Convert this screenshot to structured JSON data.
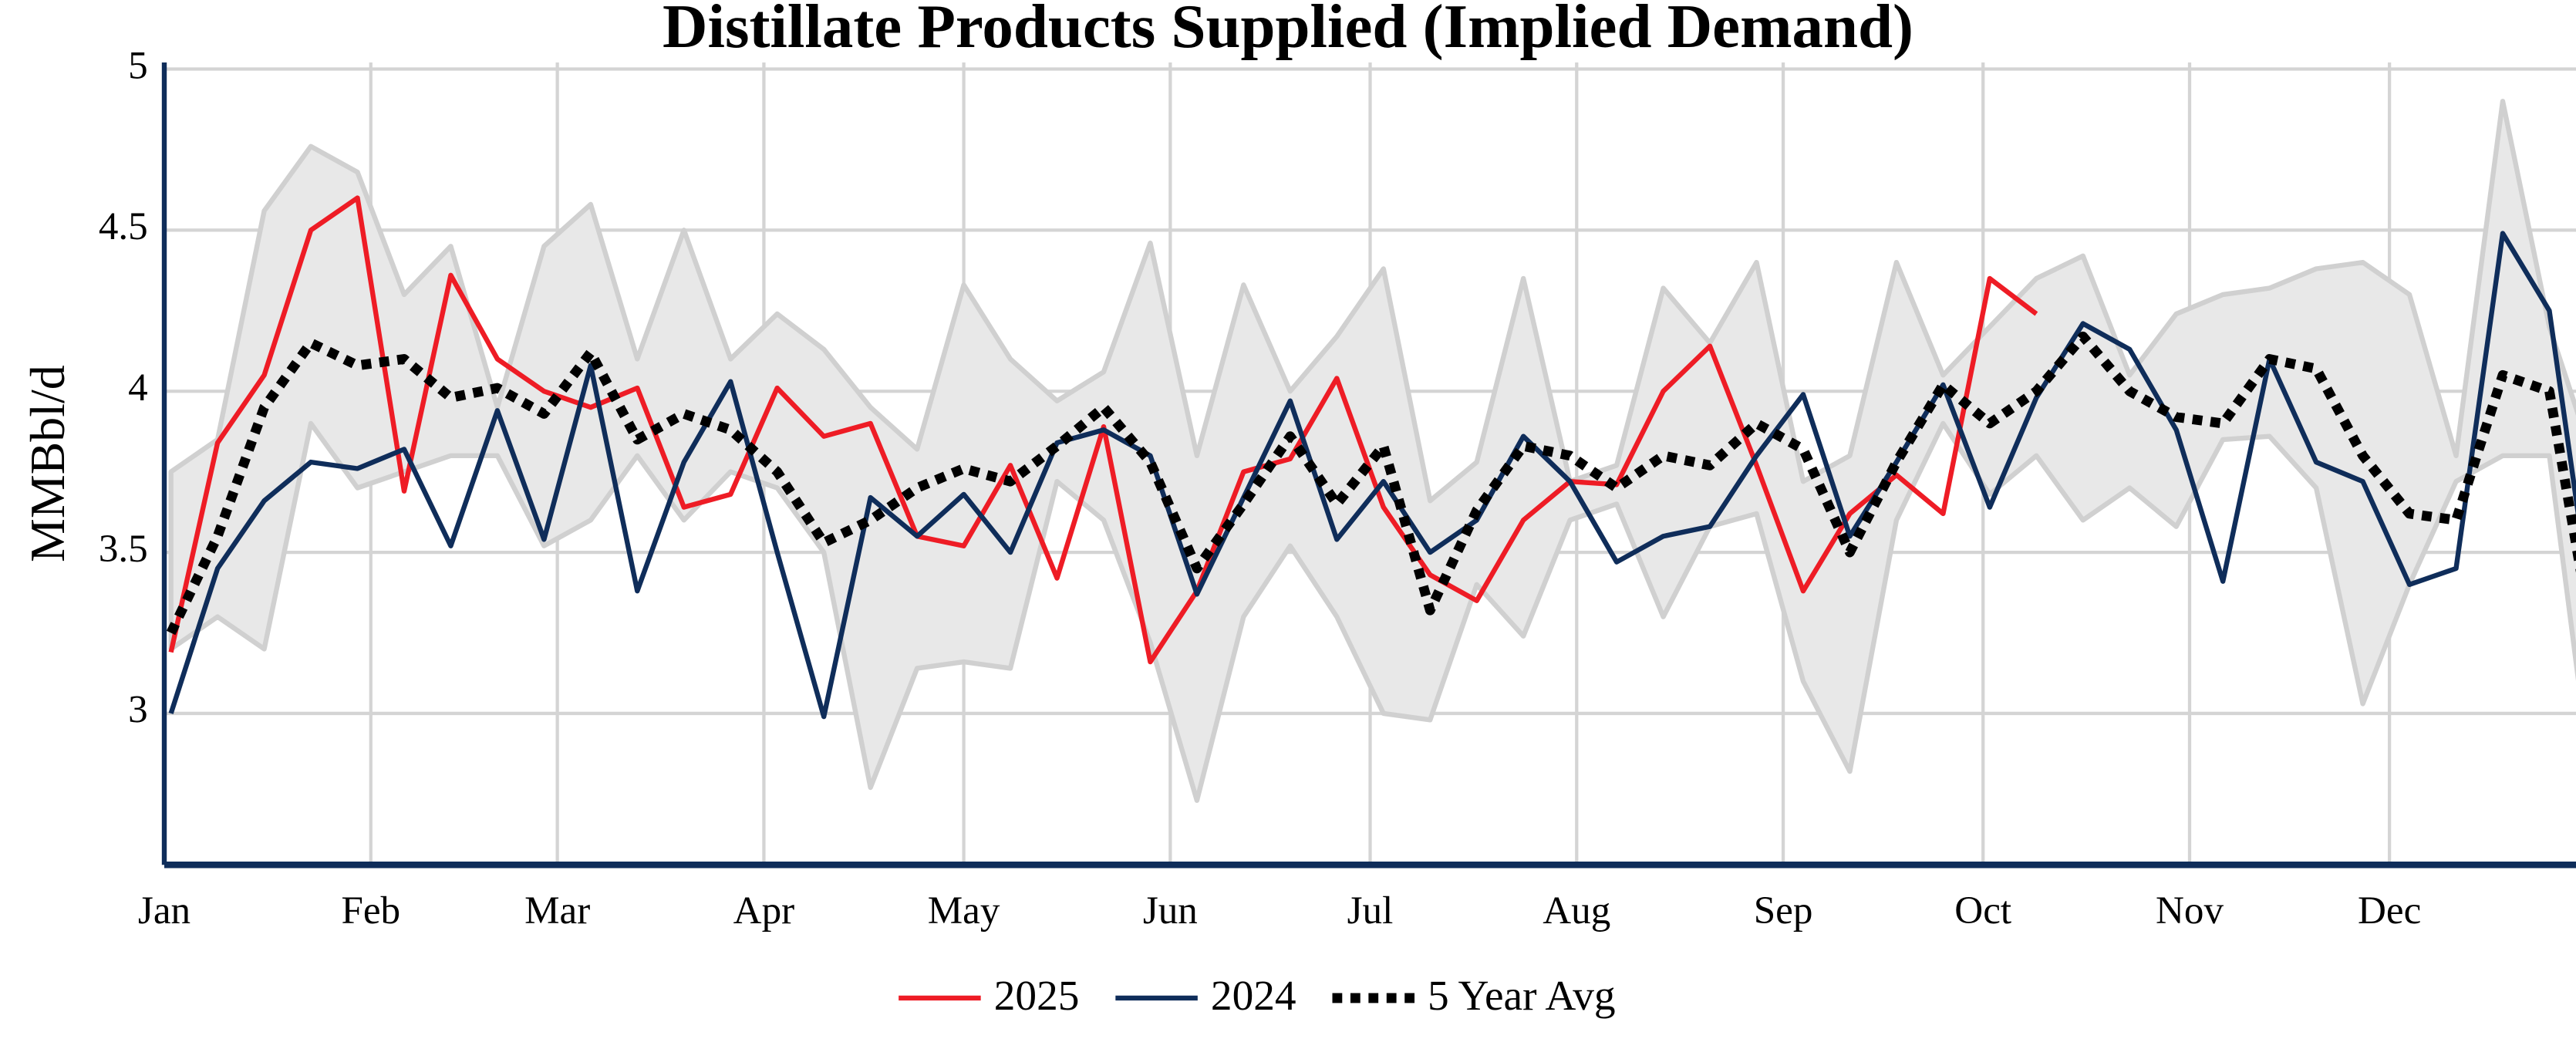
{
  "chart_data": {
    "type": "line",
    "title": "Distillate Products Supplied (Implied Demand)",
    "y_label": "MMBbl/d",
    "x": [
      1,
      8,
      15,
      22,
      29,
      36,
      43,
      50,
      57,
      64,
      71,
      78,
      85,
      92,
      99,
      106,
      113,
      120,
      127,
      134,
      141,
      148,
      155,
      162,
      169,
      176,
      183,
      190,
      197,
      204,
      211,
      218,
      225,
      232,
      239,
      246,
      253,
      260,
      267,
      274,
      281,
      288,
      295,
      302,
      309,
      316,
      323,
      330,
      337,
      344,
      351,
      358,
      365
    ],
    "xlim": [
      0,
      362
    ],
    "xticks": [
      {
        "value": 0,
        "label": "Jan"
      },
      {
        "value": 31,
        "label": "Feb"
      },
      {
        "value": 59,
        "label": "Mar"
      },
      {
        "value": 90,
        "label": "Apr"
      },
      {
        "value": 120,
        "label": "May"
      },
      {
        "value": 151,
        "label": "Jun"
      },
      {
        "value": 181,
        "label": "Jul"
      },
      {
        "value": 212,
        "label": "Aug"
      },
      {
        "value": 243,
        "label": "Sep"
      },
      {
        "value": 273,
        "label": "Oct"
      },
      {
        "value": 304,
        "label": "Nov"
      },
      {
        "value": 334,
        "label": "Dec"
      }
    ],
    "ylim": [
      2.53,
      5
    ],
    "yticks": [
      3,
      3.5,
      4,
      4.5,
      5
    ],
    "grid": true,
    "legend": "bottom",
    "band": {
      "color": "#e8e8e8",
      "edge_color": "#d0d0d0",
      "max": [
        3.75,
        3.85,
        4.56,
        4.76,
        4.68,
        4.3,
        4.45,
        3.95,
        4.45,
        4.58,
        4.1,
        4.5,
        4.1,
        4.24,
        4.13,
        3.95,
        3.82,
        4.33,
        4.1,
        3.97,
        4.06,
        4.46,
        3.8,
        4.33,
        4.0,
        4.17,
        4.38,
        3.66,
        3.78,
        4.35,
        3.72,
        3.77,
        4.32,
        4.15,
        4.4,
        3.72,
        3.8,
        4.4,
        4.05,
        4.2,
        4.35,
        4.42,
        4.05,
        4.24,
        4.3,
        4.32,
        4.38,
        4.4,
        4.3,
        3.8,
        4.9,
        4.2,
        3.76
      ],
      "min": [
        3.2,
        3.3,
        3.2,
        3.9,
        3.7,
        3.75,
        3.8,
        3.8,
        3.52,
        3.6,
        3.8,
        3.6,
        3.75,
        3.7,
        3.5,
        2.77,
        3.14,
        3.16,
        3.14,
        3.72,
        3.6,
        3.22,
        2.73,
        3.3,
        3.52,
        3.3,
        3.0,
        2.98,
        3.4,
        3.24,
        3.6,
        3.65,
        3.3,
        3.58,
        3.62,
        3.1,
        2.82,
        3.6,
        3.9,
        3.68,
        3.8,
        3.6,
        3.7,
        3.58,
        3.85,
        3.86,
        3.7,
        3.03,
        3.4,
        3.72,
        3.8,
        3.8,
        2.68
      ]
    },
    "series": [
      {
        "name": "2025",
        "color": "#ee1c25",
        "dash": false,
        "values": [
          3.19,
          3.84,
          4.05,
          4.5,
          4.6,
          3.69,
          4.36,
          4.1,
          4.0,
          3.95,
          4.01,
          3.64,
          3.68,
          4.01,
          3.86,
          3.9,
          3.55,
          3.52,
          3.77,
          3.42,
          3.89,
          3.16,
          3.38,
          3.75,
          3.79,
          4.04,
          3.64,
          3.43,
          3.35,
          3.6,
          3.72,
          3.71,
          4.0,
          4.14,
          3.77,
          3.38,
          3.62,
          3.74,
          3.62,
          4.35,
          4.24,
          null,
          null,
          null,
          null,
          null,
          null,
          null,
          null,
          null,
          null,
          null,
          null
        ]
      },
      {
        "name": "2024",
        "color": "#0f2d5a",
        "dash": false,
        "values": [
          3.0,
          3.45,
          3.66,
          3.78,
          3.76,
          3.82,
          3.52,
          3.94,
          3.54,
          4.08,
          3.38,
          3.78,
          4.03,
          3.5,
          2.99,
          3.67,
          3.55,
          3.68,
          3.5,
          3.84,
          3.88,
          3.8,
          3.37,
          3.67,
          3.97,
          3.54,
          3.72,
          3.5,
          3.6,
          3.86,
          3.72,
          3.47,
          3.55,
          3.58,
          3.8,
          3.99,
          3.55,
          3.78,
          4.02,
          3.64,
          3.98,
          4.21,
          4.13,
          3.88,
          3.41,
          4.1,
          3.78,
          3.72,
          3.4,
          3.45,
          4.49,
          4.25,
          3.23
        ]
      },
      {
        "name": "5 Year Avg",
        "color": "#000000",
        "dash": true,
        "values": [
          3.25,
          3.55,
          3.95,
          4.15,
          4.08,
          4.1,
          3.98,
          4.01,
          3.93,
          4.12,
          3.85,
          3.93,
          3.88,
          3.75,
          3.53,
          3.6,
          3.7,
          3.76,
          3.72,
          3.83,
          3.95,
          3.78,
          3.45,
          3.65,
          3.86,
          3.65,
          3.83,
          3.32,
          3.63,
          3.83,
          3.8,
          3.7,
          3.8,
          3.77,
          3.9,
          3.82,
          3.5,
          3.78,
          4.02,
          3.9,
          4.0,
          4.17,
          4.0,
          3.92,
          3.9,
          4.1,
          4.07,
          3.8,
          3.62,
          3.6,
          4.05,
          4.0,
          3.17
        ]
      }
    ]
  }
}
